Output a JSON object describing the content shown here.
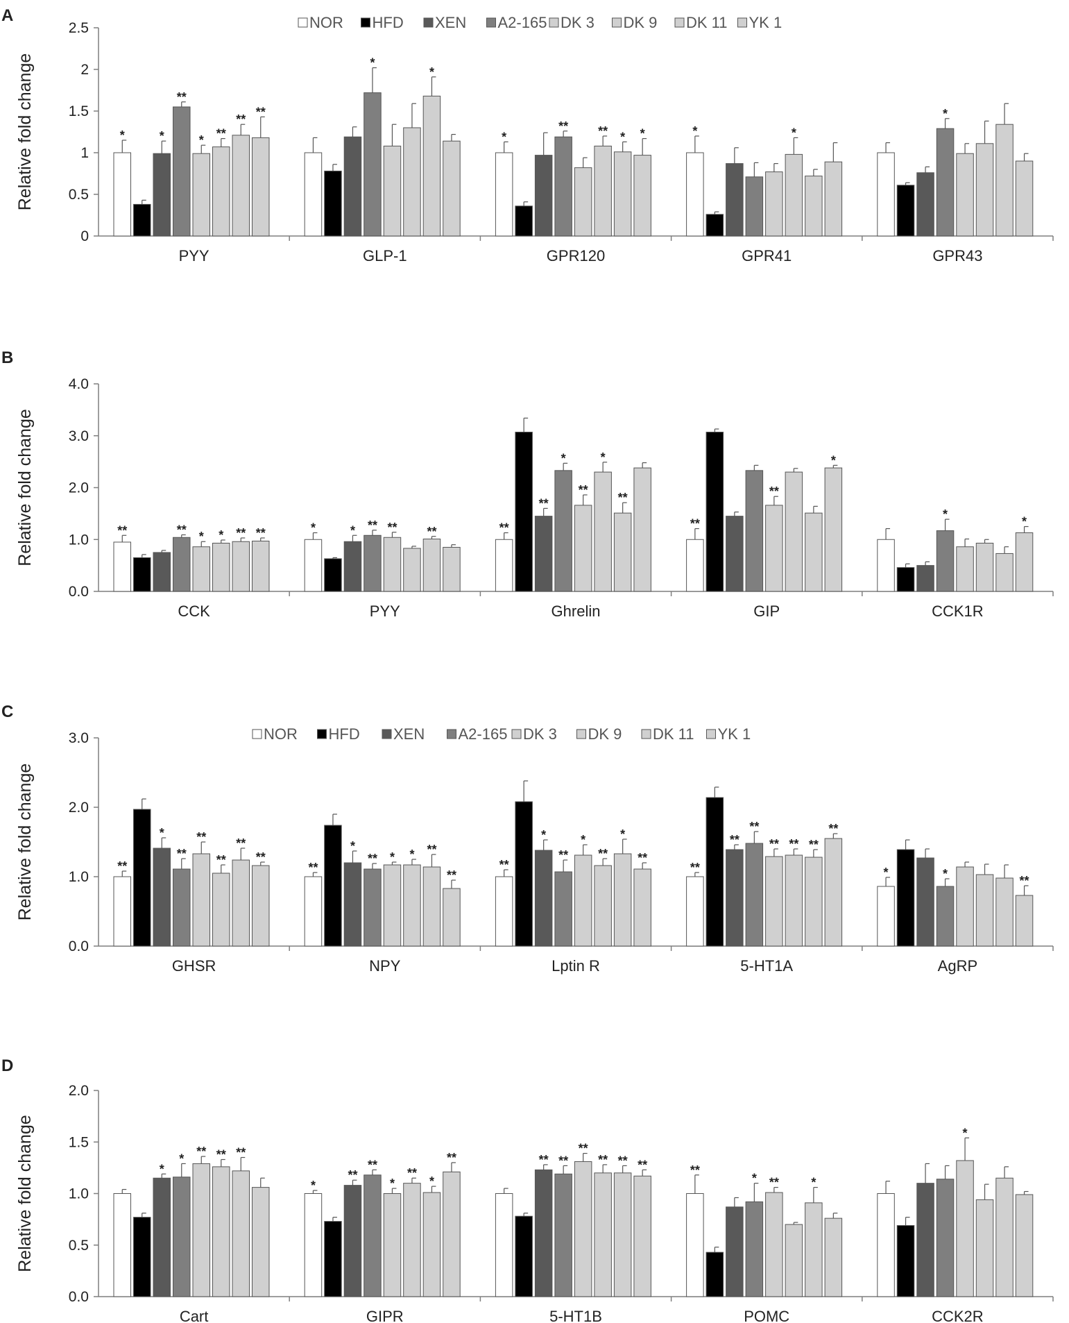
{
  "legend": [
    "NOR",
    "HFD",
    "XEN",
    "A2-165",
    "DK 3",
    "DK 9",
    "DK 11",
    "YK 1"
  ],
  "colors": {
    "NOR": "#ffffff",
    "HFD": "#000000",
    "XEN": "#595959",
    "A2-165": "#7f7f7f",
    "DK 3": "#d0d0d0",
    "DK 9": "#d0d0d0",
    "DK 11": "#d0d0d0",
    "YK 1": "#d0d0d0",
    "outline": "#555555",
    "axis": "#7f7f7f"
  },
  "chart_data": [
    {
      "panel": "A",
      "type": "bar",
      "ylabel": "Relative fold change",
      "ylim": [
        0,
        2.5
      ],
      "yticks": [
        "0",
        "0.5",
        "1",
        "1.5",
        "2",
        "2.5"
      ],
      "legend_shown": true,
      "categories": [
        "PYY",
        "GLP-1",
        "GPR120",
        "GPR41",
        "GPR43"
      ],
      "series": [
        {
          "name": "NOR",
          "values": [
            1.0,
            1.0,
            1.0,
            1.0,
            1.0
          ],
          "errors": [
            0.15,
            0.18,
            0.13,
            0.2,
            0.12
          ],
          "sig": [
            "*",
            "",
            "*",
            "*",
            ""
          ]
        },
        {
          "name": "HFD",
          "values": [
            0.38,
            0.78,
            0.36,
            0.26,
            0.61
          ],
          "errors": [
            0.05,
            0.08,
            0.05,
            0.03,
            0.03
          ],
          "sig": [
            "",
            "",
            "",
            "",
            ""
          ]
        },
        {
          "name": "XEN",
          "values": [
            0.99,
            1.19,
            0.97,
            0.87,
            0.76
          ],
          "errors": [
            0.15,
            0.12,
            0.27,
            0.19,
            0.07
          ],
          "sig": [
            "*",
            "",
            "",
            "",
            ""
          ]
        },
        {
          "name": "A2-165",
          "values": [
            1.55,
            1.72,
            1.19,
            0.71,
            1.29
          ],
          "errors": [
            0.06,
            0.3,
            0.07,
            0.17,
            0.12
          ],
          "sig": [
            "**",
            "*",
            "**",
            "",
            "*"
          ]
        },
        {
          "name": "DK 3",
          "values": [
            0.99,
            1.08,
            0.82,
            0.77,
            0.99
          ],
          "errors": [
            0.1,
            0.26,
            0.12,
            0.1,
            0.12
          ],
          "sig": [
            "*",
            "",
            "",
            "",
            ""
          ]
        },
        {
          "name": "DK 9",
          "values": [
            1.07,
            1.3,
            1.08,
            0.98,
            1.11
          ],
          "errors": [
            0.1,
            0.29,
            0.12,
            0.2,
            0.27
          ],
          "sig": [
            "**",
            "",
            "**",
            "*",
            ""
          ]
        },
        {
          "name": "DK 11",
          "values": [
            1.21,
            1.68,
            1.01,
            0.72,
            1.34
          ],
          "errors": [
            0.13,
            0.23,
            0.12,
            0.08,
            0.25
          ],
          "sig": [
            "**",
            "*",
            "*",
            "",
            ""
          ]
        },
        {
          "name": "YK 1",
          "values": [
            1.18,
            1.14,
            0.97,
            0.89,
            0.9
          ],
          "errors": [
            0.25,
            0.08,
            0.2,
            0.23,
            0.09
          ],
          "sig": [
            "**",
            "",
            "*",
            "",
            ""
          ]
        }
      ]
    },
    {
      "panel": "B",
      "type": "bar",
      "ylabel": "Relative fold change",
      "ylim": [
        0,
        4.0
      ],
      "yticks": [
        "0.0",
        "1.0",
        "2.0",
        "3.0",
        "4.0"
      ],
      "legend_shown": false,
      "categories": [
        "CCK",
        "PYY",
        "Ghrelin",
        "GIP",
        "CCK1R"
      ],
      "series": [
        {
          "name": "NOR",
          "values": [
            0.95,
            1.0,
            1.0,
            1.0,
            1.0
          ],
          "errors": [
            0.13,
            0.13,
            0.13,
            0.21,
            0.21
          ],
          "sig": [
            "**",
            "*",
            "**",
            "**",
            ""
          ]
        },
        {
          "name": "HFD",
          "values": [
            0.65,
            0.63,
            3.07,
            3.07,
            0.46
          ],
          "errors": [
            0.06,
            0.02,
            0.27,
            0.06,
            0.07
          ],
          "sig": [
            "",
            "",
            "",
            "",
            ""
          ]
        },
        {
          "name": "XEN",
          "values": [
            0.75,
            0.96,
            1.45,
            1.45,
            0.5
          ],
          "errors": [
            0.04,
            0.12,
            0.15,
            0.08,
            0.07
          ],
          "sig": [
            "",
            "*",
            "**",
            "",
            ""
          ]
        },
        {
          "name": "A2-165",
          "values": [
            1.04,
            1.08,
            2.33,
            2.33,
            1.17
          ],
          "errors": [
            0.05,
            0.1,
            0.14,
            0.1,
            0.22
          ],
          "sig": [
            "**",
            "**",
            "*",
            "",
            "*"
          ]
        },
        {
          "name": "DK 3",
          "values": [
            0.86,
            1.04,
            1.66,
            1.66,
            0.86
          ],
          "errors": [
            0.1,
            0.1,
            0.2,
            0.17,
            0.15
          ],
          "sig": [
            "*",
            "**",
            "**",
            "**",
            ""
          ]
        },
        {
          "name": "DK 9",
          "values": [
            0.93,
            0.83,
            2.3,
            2.3,
            0.93
          ],
          "errors": [
            0.06,
            0.04,
            0.19,
            0.07,
            0.07
          ],
          "sig": [
            "*",
            "",
            "*",
            "",
            ""
          ]
        },
        {
          "name": "DK 11",
          "values": [
            0.96,
            1.01,
            1.51,
            1.51,
            0.73
          ],
          "errors": [
            0.07,
            0.05,
            0.2,
            0.13,
            0.13
          ],
          "sig": [
            "**",
            "**",
            "**",
            "",
            ""
          ]
        },
        {
          "name": "YK 1",
          "values": [
            0.97,
            0.85,
            2.38,
            2.38,
            1.13
          ],
          "errors": [
            0.06,
            0.05,
            0.1,
            0.05,
            0.12
          ],
          "sig": [
            "**",
            "",
            "",
            "*",
            "*"
          ]
        }
      ]
    },
    {
      "panel": "C",
      "type": "bar",
      "ylabel": "Relative fold change",
      "ylim": [
        0,
        3.0
      ],
      "yticks": [
        "0.0",
        "1.0",
        "2.0",
        "3.0"
      ],
      "legend_shown": true,
      "categories": [
        "GHSR",
        "NPY",
        "Lptin R",
        "5-HT1A",
        "AgRP"
      ],
      "series": [
        {
          "name": "NOR",
          "values": [
            1.0,
            1.0,
            1.0,
            1.0,
            0.86
          ],
          "errors": [
            0.08,
            0.06,
            0.1,
            0.06,
            0.13
          ],
          "sig": [
            "**",
            "**",
            "**",
            "**",
            "*"
          ]
        },
        {
          "name": "HFD",
          "values": [
            1.97,
            1.74,
            2.08,
            2.14,
            1.39
          ],
          "errors": [
            0.15,
            0.16,
            0.3,
            0.15,
            0.14
          ],
          "sig": [
            "",
            "",
            "",
            "",
            ""
          ]
        },
        {
          "name": "XEN",
          "values": [
            1.41,
            1.2,
            1.38,
            1.39,
            1.27
          ],
          "errors": [
            0.15,
            0.17,
            0.15,
            0.07,
            0.13
          ],
          "sig": [
            "*",
            "*",
            "*",
            "**",
            ""
          ]
        },
        {
          "name": "A2-165",
          "values": [
            1.11,
            1.11,
            1.07,
            1.48,
            0.86
          ],
          "errors": [
            0.15,
            0.08,
            0.17,
            0.17,
            0.11
          ],
          "sig": [
            "**",
            "**",
            "**",
            "**",
            "*"
          ]
        },
        {
          "name": "DK 3",
          "values": [
            1.33,
            1.17,
            1.31,
            1.29,
            1.14
          ],
          "errors": [
            0.17,
            0.04,
            0.15,
            0.11,
            0.07
          ],
          "sig": [
            "**",
            "*",
            "*",
            "**",
            ""
          ]
        },
        {
          "name": "DK 9",
          "values": [
            1.05,
            1.17,
            1.16,
            1.31,
            1.03
          ],
          "errors": [
            0.12,
            0.08,
            0.1,
            0.09,
            0.15
          ],
          "sig": [
            "**",
            "*",
            "**",
            "**",
            ""
          ]
        },
        {
          "name": "DK 11",
          "values": [
            1.24,
            1.14,
            1.33,
            1.28,
            0.98
          ],
          "errors": [
            0.17,
            0.18,
            0.21,
            0.11,
            0.19
          ],
          "sig": [
            "**",
            "**",
            "*",
            "**",
            ""
          ]
        },
        {
          "name": "YK 1",
          "values": [
            1.16,
            0.83,
            1.11,
            1.55,
            0.73
          ],
          "errors": [
            0.05,
            0.12,
            0.09,
            0.07,
            0.14
          ],
          "sig": [
            "**",
            "**",
            "**",
            "**",
            "**"
          ]
        }
      ]
    },
    {
      "panel": "D",
      "type": "bar",
      "ylabel": "Relative fold change",
      "ylim": [
        0,
        2.0
      ],
      "yticks": [
        "0.0",
        "0.5",
        "1.0",
        "1.5",
        "2.0"
      ],
      "legend_shown": false,
      "categories": [
        "Cart",
        "GIPR",
        "5-HT1B",
        "POMC",
        "CCK2R"
      ],
      "series": [
        {
          "name": "NOR",
          "values": [
            1.0,
            1.0,
            1.0,
            1.0,
            1.0
          ],
          "errors": [
            0.04,
            0.03,
            0.05,
            0.18,
            0.12
          ],
          "sig": [
            "",
            "*",
            "",
            "**",
            ""
          ]
        },
        {
          "name": "HFD",
          "values": [
            0.77,
            0.73,
            0.78,
            0.43,
            0.69
          ],
          "errors": [
            0.04,
            0.04,
            0.03,
            0.05,
            0.08
          ],
          "sig": [
            "",
            "",
            "",
            "",
            ""
          ]
        },
        {
          "name": "XEN",
          "values": [
            1.15,
            1.08,
            1.23,
            0.87,
            1.1
          ],
          "errors": [
            0.04,
            0.05,
            0.05,
            0.09,
            0.19
          ],
          "sig": [
            "*",
            "**",
            "**",
            "",
            ""
          ]
        },
        {
          "name": "A2-165",
          "values": [
            1.16,
            1.18,
            1.19,
            0.92,
            1.14
          ],
          "errors": [
            0.13,
            0.05,
            0.08,
            0.18,
            0.13
          ],
          "sig": [
            "*",
            "**",
            "**",
            "*",
            ""
          ]
        },
        {
          "name": "DK 3",
          "values": [
            1.29,
            1.0,
            1.31,
            1.01,
            1.32
          ],
          "errors": [
            0.07,
            0.05,
            0.08,
            0.05,
            0.22
          ],
          "sig": [
            "**",
            "*",
            "**",
            "**",
            "*"
          ]
        },
        {
          "name": "DK 9",
          "values": [
            1.26,
            1.1,
            1.2,
            0.7,
            0.94
          ],
          "errors": [
            0.07,
            0.05,
            0.08,
            0.02,
            0.15
          ],
          "sig": [
            "**",
            "**",
            "**",
            "",
            ""
          ]
        },
        {
          "name": "DK 11",
          "values": [
            1.22,
            1.01,
            1.2,
            0.91,
            1.15
          ],
          "errors": [
            0.13,
            0.06,
            0.07,
            0.15,
            0.11
          ],
          "sig": [
            "**",
            "*",
            "**",
            "*",
            ""
          ]
        },
        {
          "name": "YK 1",
          "values": [
            1.06,
            1.21,
            1.17,
            0.76,
            0.99
          ],
          "errors": [
            0.09,
            0.09,
            0.06,
            0.05,
            0.03
          ],
          "sig": [
            "",
            "**",
            "**",
            "",
            ""
          ]
        }
      ]
    }
  ]
}
